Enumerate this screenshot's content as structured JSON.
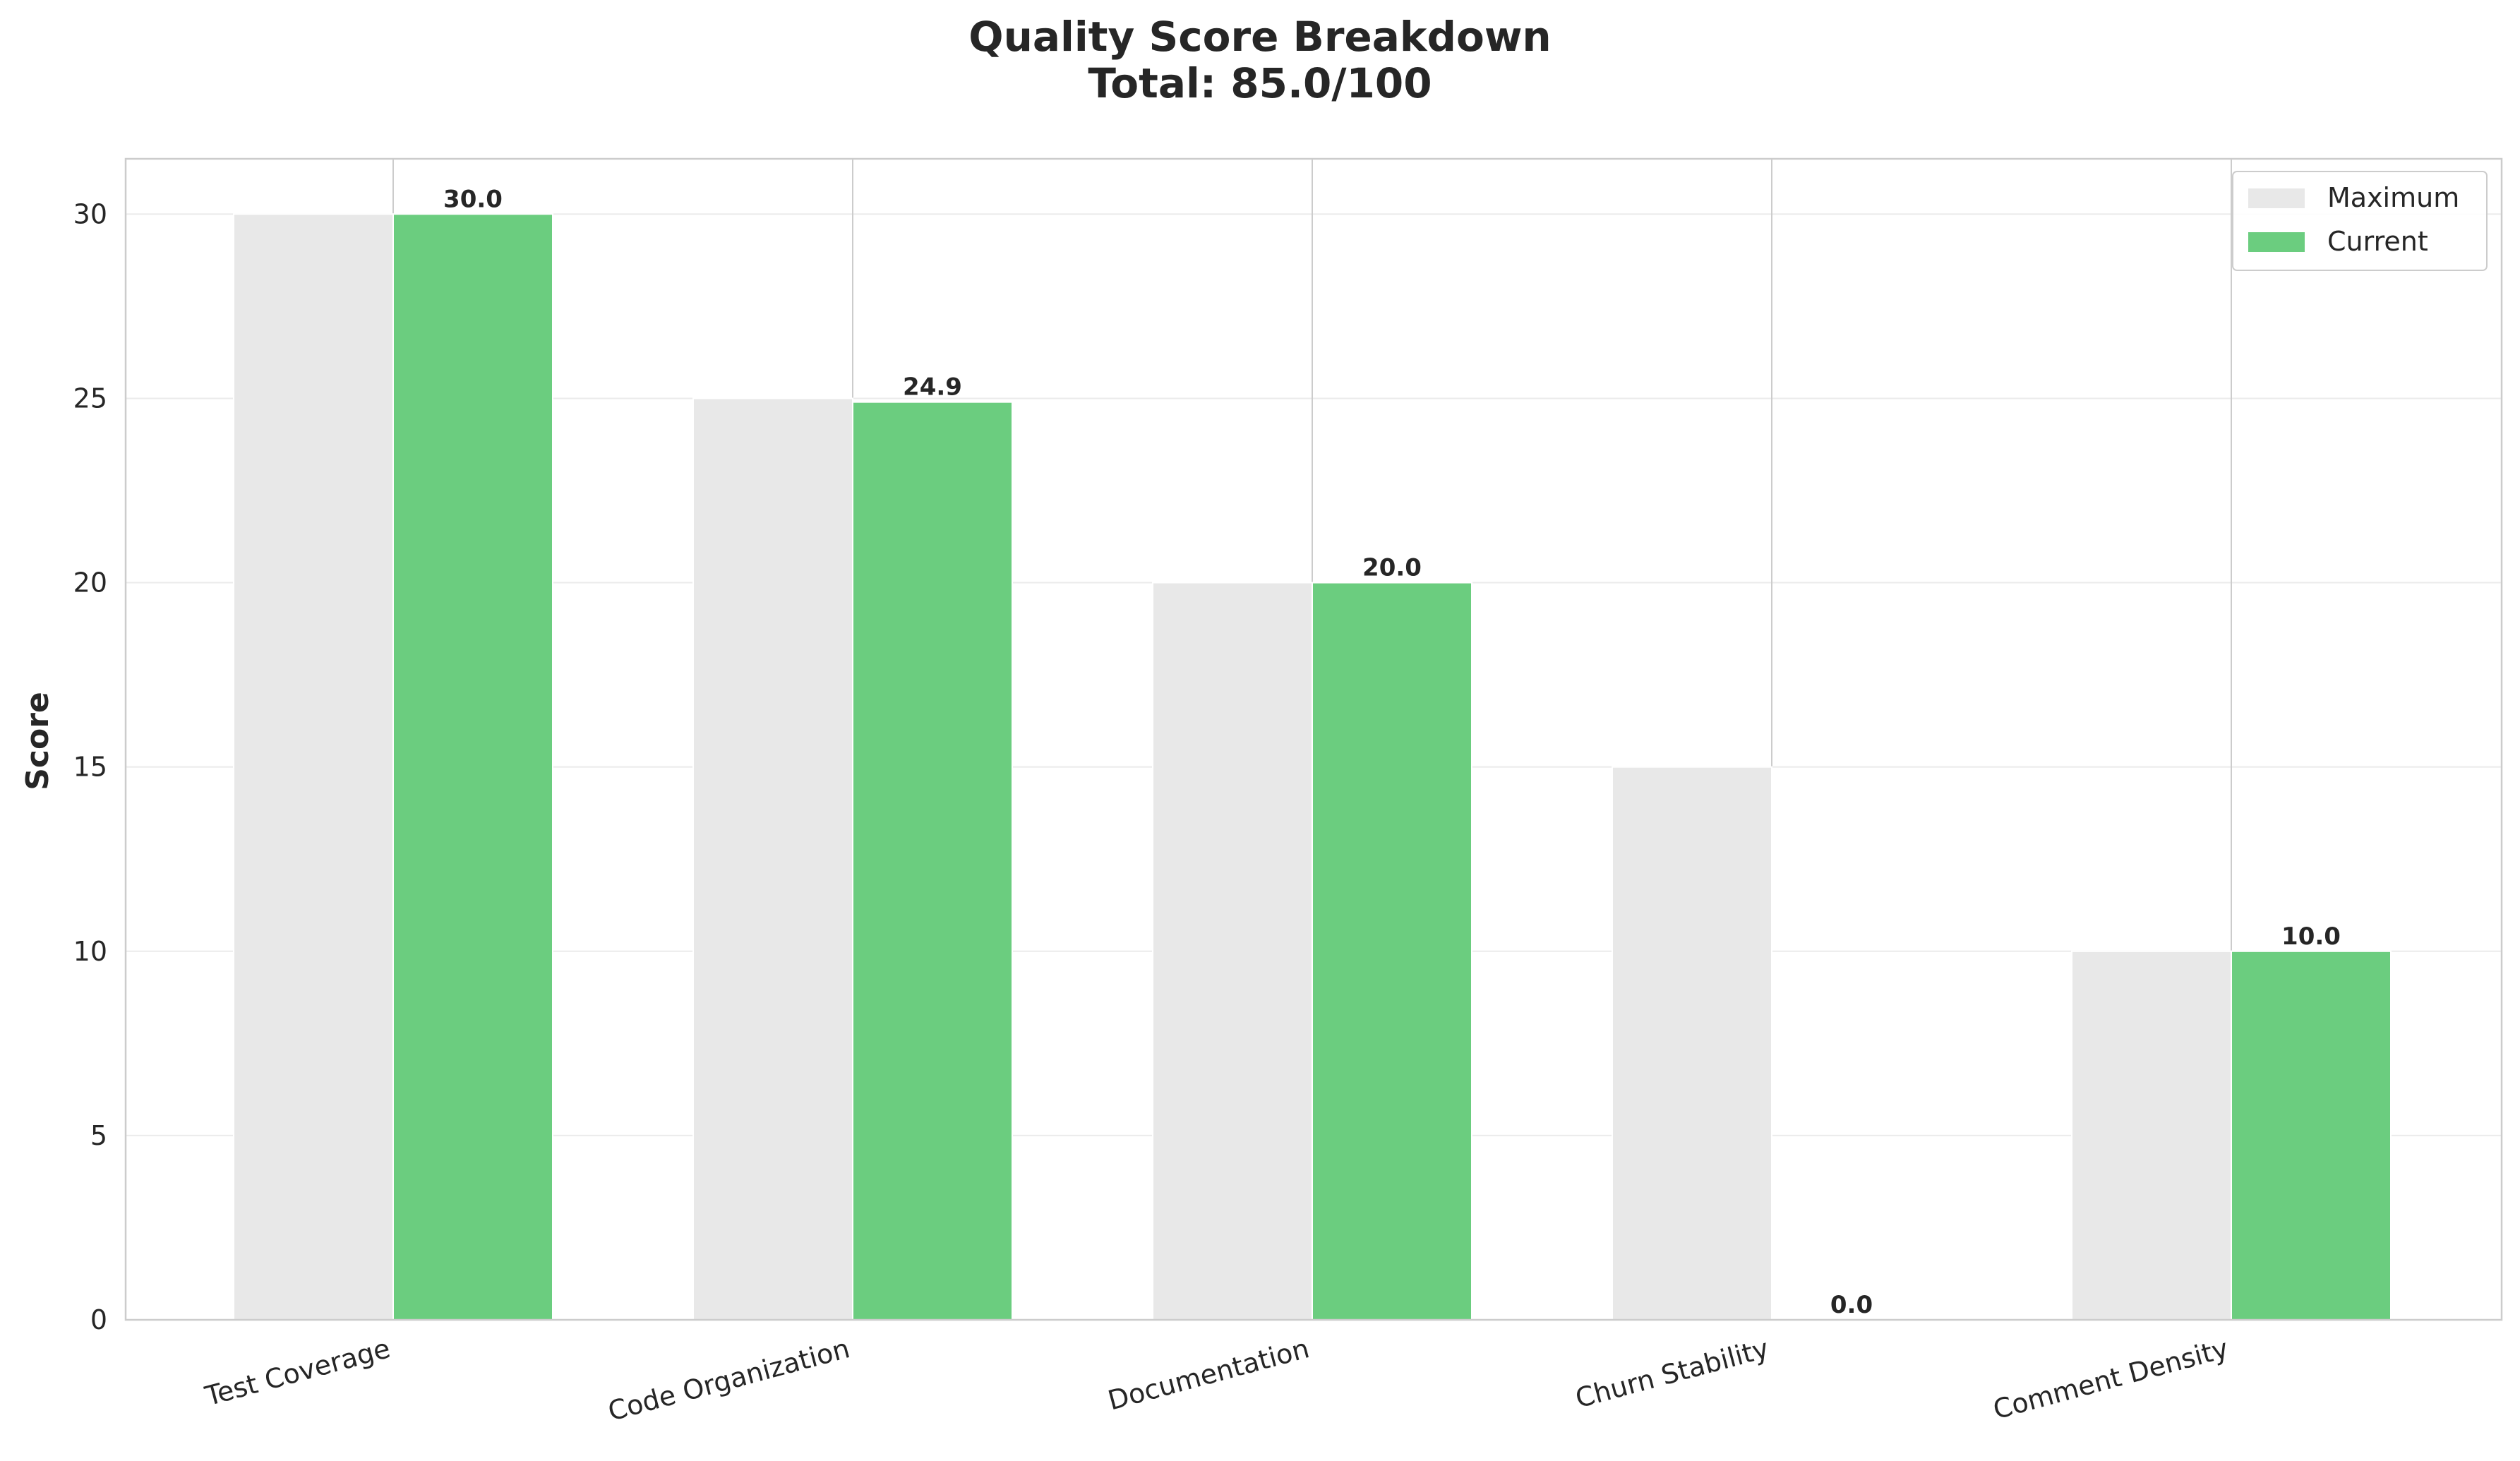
{
  "chart_data": {
    "type": "bar",
    "title": "Quality Score Breakdown",
    "subtitle": "Total: 85.0/100",
    "xlabel": "",
    "ylabel": "Score",
    "categories": [
      "Test Coverage",
      "Code Organization",
      "Documentation",
      "Churn Stability",
      "Comment Density"
    ],
    "series": [
      {
        "name": "Maximum",
        "values": [
          30,
          25,
          20,
          15,
          10
        ],
        "color": "#e8e8e8"
      },
      {
        "name": "Current",
        "values": [
          30.0,
          24.9,
          20.0,
          0.0,
          10.0
        ],
        "color": "#6bcd7f"
      }
    ],
    "data_labels": [
      "30.0",
      "24.9",
      "20.0",
      "0.0",
      "10.0"
    ],
    "yticks": [
      0,
      5,
      10,
      15,
      20,
      25,
      30
    ],
    "ylim": [
      0,
      31.5
    ],
    "grid": true,
    "legend_position": "top-right",
    "xtick_rotation": 15
  }
}
